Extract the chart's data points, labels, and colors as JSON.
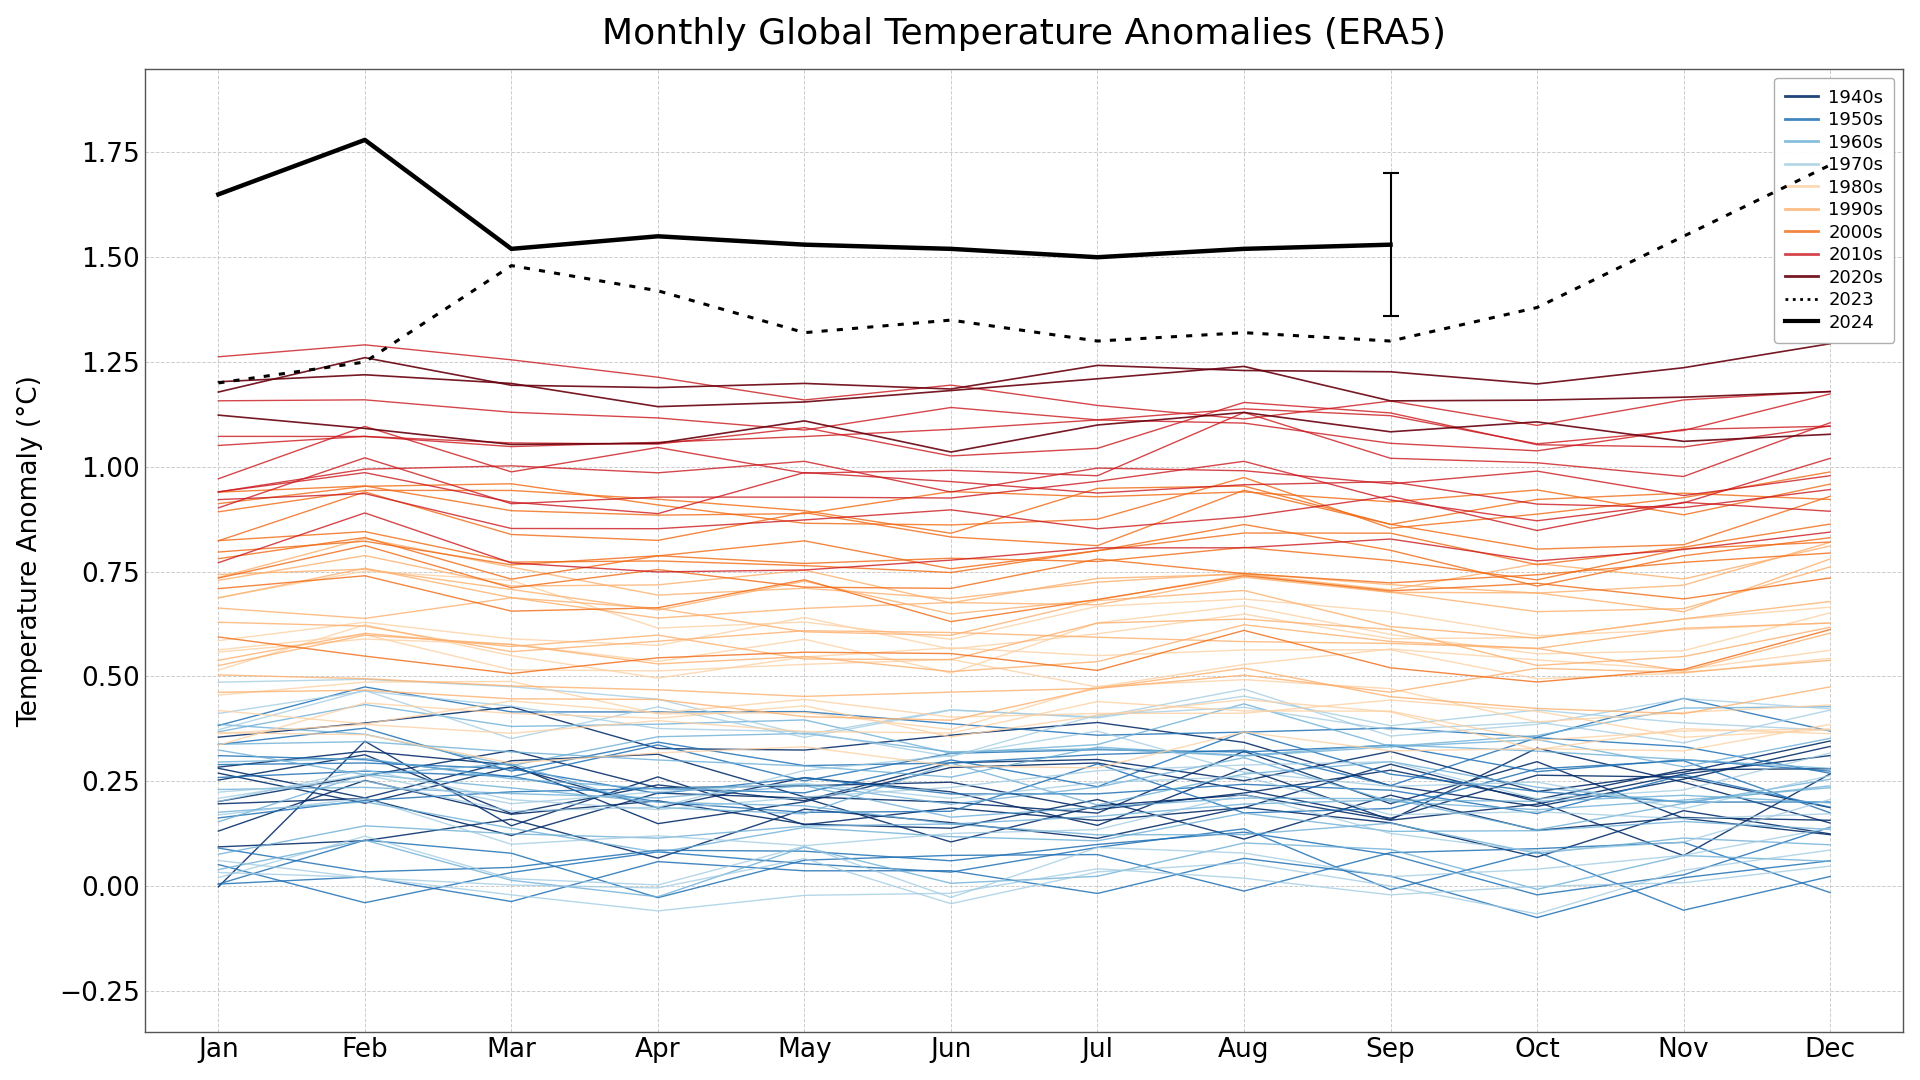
{
  "title": "Monthly Global Temperature Anomalies (ERA5)",
  "ylabel": "Temperature Anomaly (°C)",
  "months": [
    "Jan",
    "Feb",
    "Mar",
    "Apr",
    "May",
    "Jun",
    "Jul",
    "Aug",
    "Sep",
    "Oct",
    "Nov",
    "Dec"
  ],
  "decades": {
    "1940s": {
      "color": "#08306b",
      "alpha": 0.9,
      "lw": 1.0,
      "years": {
        "1940": [
          0.01,
          0.3,
          0.12,
          0.25,
          0.18,
          0.22,
          0.2,
          0.15,
          0.28,
          0.18,
          0.12,
          0.22
        ],
        "1941": [
          0.25,
          0.35,
          0.32,
          0.18,
          0.22,
          0.28,
          0.3,
          0.25,
          0.15,
          0.3,
          0.28,
          0.2
        ],
        "1942": [
          0.2,
          0.18,
          0.15,
          0.22,
          0.2,
          0.15,
          0.18,
          0.25,
          0.2,
          0.15,
          0.22,
          0.28
        ],
        "1943": [
          0.3,
          0.25,
          0.28,
          0.32,
          0.25,
          0.2,
          0.22,
          0.28,
          0.22,
          0.28,
          0.18,
          0.12
        ],
        "1944": [
          0.35,
          0.42,
          0.38,
          0.3,
          0.28,
          0.32,
          0.38,
          0.3,
          0.28,
          0.22,
          0.3,
          0.35
        ],
        "1945": [
          0.28,
          0.22,
          0.25,
          0.2,
          0.28,
          0.22,
          0.18,
          0.25,
          0.2,
          0.28,
          0.22,
          0.18
        ],
        "1946": [
          0.18,
          0.22,
          0.15,
          0.18,
          0.12,
          0.18,
          0.22,
          0.15,
          0.18,
          0.12,
          0.18,
          0.2
        ],
        "1947": [
          0.22,
          0.28,
          0.3,
          0.22,
          0.2,
          0.25,
          0.22,
          0.2,
          0.25,
          0.2,
          0.25,
          0.28
        ],
        "1948": [
          0.25,
          0.32,
          0.22,
          0.28,
          0.25,
          0.28,
          0.32,
          0.25,
          0.28,
          0.25,
          0.28,
          0.32
        ],
        "1949": [
          0.12,
          0.15,
          0.18,
          0.1,
          0.14,
          0.12,
          0.1,
          0.15,
          0.12,
          0.1,
          0.14,
          0.12
        ]
      }
    },
    "1950s": {
      "color": "#2171b5",
      "alpha": 0.85,
      "lw": 1.0,
      "years": {
        "1950": [
          0.02,
          -0.08,
          0.05,
          0.12,
          0.08,
          0.04,
          0.06,
          0.1,
          0.04,
          0.08,
          -0.05,
          0.05
        ],
        "1951": [
          0.2,
          0.22,
          0.18,
          0.25,
          0.22,
          0.28,
          0.25,
          0.32,
          0.22,
          0.25,
          0.2,
          0.22
        ],
        "1952": [
          0.28,
          0.32,
          0.25,
          0.2,
          0.22,
          0.2,
          0.25,
          0.2,
          0.22,
          0.28,
          0.25,
          0.2
        ],
        "1953": [
          0.32,
          0.35,
          0.3,
          0.32,
          0.3,
          0.28,
          0.3,
          0.32,
          0.28,
          0.32,
          0.35,
          0.3
        ],
        "1954": [
          0.05,
          0.1,
          0.06,
          0.02,
          0.06,
          0.1,
          0.06,
          0.02,
          0.06,
          0.1,
          0.06,
          0.02
        ],
        "1955": [
          0.02,
          0.06,
          -0.08,
          0.02,
          0.06,
          0.02,
          -0.05,
          0.06,
          0.02,
          -0.05,
          0.06,
          0.02
        ],
        "1956": [
          0.05,
          0.02,
          0.06,
          0.1,
          0.06,
          0.02,
          0.06,
          0.1,
          0.06,
          0.02,
          0.06,
          0.1
        ],
        "1957": [
          0.3,
          0.35,
          0.3,
          0.32,
          0.3,
          0.35,
          0.32,
          0.3,
          0.32,
          0.3,
          0.28,
          0.3
        ],
        "1958": [
          0.4,
          0.45,
          0.4,
          0.38,
          0.4,
          0.38,
          0.4,
          0.38,
          0.4,
          0.38,
          0.4,
          0.38
        ],
        "1959": [
          0.25,
          0.28,
          0.25,
          0.22,
          0.25,
          0.22,
          0.25,
          0.22,
          0.25,
          0.22,
          0.25,
          0.22
        ]
      }
    },
    "1960s": {
      "color": "#6baed6",
      "alpha": 0.8,
      "lw": 1.0,
      "years": {
        "1960": [
          0.28,
          0.22,
          0.25,
          0.2,
          0.22,
          0.25,
          0.2,
          0.22,
          0.25,
          0.2,
          0.22,
          0.25
        ],
        "1961": [
          0.35,
          0.38,
          0.32,
          0.35,
          0.32,
          0.3,
          0.32,
          0.35,
          0.32,
          0.3,
          0.32,
          0.35
        ],
        "1962": [
          0.3,
          0.32,
          0.3,
          0.28,
          0.3,
          0.28,
          0.3,
          0.28,
          0.3,
          0.28,
          0.3,
          0.28
        ],
        "1963": [
          0.2,
          0.22,
          0.2,
          0.18,
          0.2,
          0.18,
          0.2,
          0.25,
          0.2,
          0.18,
          0.2,
          0.25
        ],
        "1964": [
          0.06,
          0.1,
          0.06,
          0.02,
          0.06,
          0.02,
          0.06,
          0.1,
          0.06,
          0.02,
          0.06,
          0.1
        ],
        "1965": [
          0.12,
          0.14,
          0.12,
          0.1,
          0.12,
          0.1,
          0.12,
          0.14,
          0.12,
          0.1,
          0.12,
          0.14
        ],
        "1966": [
          0.2,
          0.22,
          0.2,
          0.18,
          0.2,
          0.18,
          0.2,
          0.22,
          0.2,
          0.18,
          0.2,
          0.22
        ],
        "1967": [
          0.25,
          0.28,
          0.25,
          0.22,
          0.25,
          0.22,
          0.25,
          0.28,
          0.25,
          0.22,
          0.25,
          0.28
        ],
        "1968": [
          0.14,
          0.18,
          0.14,
          0.12,
          0.14,
          0.12,
          0.14,
          0.18,
          0.14,
          0.12,
          0.14,
          0.18
        ],
        "1969": [
          0.38,
          0.42,
          0.38,
          0.35,
          0.38,
          0.35,
          0.38,
          0.42,
          0.38,
          0.35,
          0.38,
          0.42
        ]
      }
    },
    "1970s": {
      "color": "#9ecae1",
      "alpha": 0.75,
      "lw": 1.0,
      "years": {
        "1970": [
          0.22,
          0.25,
          0.2,
          0.22,
          0.2,
          0.22,
          0.2,
          0.22,
          0.2,
          0.22,
          0.2,
          0.22
        ],
        "1971": [
          0.06,
          0.1,
          0.06,
          0.02,
          0.06,
          0.02,
          0.06,
          0.1,
          0.06,
          0.02,
          0.06,
          0.1
        ],
        "1972": [
          0.2,
          0.22,
          0.2,
          0.22,
          0.25,
          0.28,
          0.32,
          0.28,
          0.25,
          0.22,
          0.2,
          0.22
        ],
        "1973": [
          0.45,
          0.5,
          0.45,
          0.42,
          0.4,
          0.38,
          0.4,
          0.42,
          0.4,
          0.38,
          0.4,
          0.42
        ],
        "1974": [
          0.02,
          0.06,
          0.02,
          -0.05,
          0.02,
          -0.05,
          0.02,
          0.06,
          0.02,
          -0.05,
          0.02,
          0.06
        ],
        "1975": [
          0.14,
          0.18,
          0.14,
          0.12,
          0.14,
          0.12,
          0.14,
          0.18,
          0.14,
          0.12,
          0.14,
          0.18
        ],
        "1976": [
          0.02,
          0.06,
          0.02,
          -0.08,
          0.02,
          -0.05,
          0.02,
          0.06,
          0.02,
          -0.05,
          0.02,
          0.06
        ],
        "1977": [
          0.38,
          0.42,
          0.38,
          0.35,
          0.38,
          0.35,
          0.38,
          0.42,
          0.38,
          0.35,
          0.38,
          0.42
        ],
        "1978": [
          0.25,
          0.28,
          0.25,
          0.22,
          0.25,
          0.22,
          0.25,
          0.28,
          0.25,
          0.22,
          0.25,
          0.28
        ],
        "1979": [
          0.4,
          0.42,
          0.4,
          0.38,
          0.4,
          0.38,
          0.4,
          0.42,
          0.4,
          0.38,
          0.4,
          0.42
        ]
      }
    },
    "1980s": {
      "color": "#fdd0a2",
      "alpha": 0.8,
      "lw": 1.0,
      "years": {
        "1980": [
          0.55,
          0.58,
          0.52,
          0.5,
          0.52,
          0.5,
          0.52,
          0.55,
          0.52,
          0.5,
          0.52,
          0.55
        ],
        "1981": [
          0.58,
          0.62,
          0.58,
          0.55,
          0.58,
          0.55,
          0.58,
          0.62,
          0.58,
          0.55,
          0.58,
          0.62
        ],
        "1982": [
          0.4,
          0.42,
          0.4,
          0.38,
          0.4,
          0.38,
          0.4,
          0.42,
          0.4,
          0.38,
          0.4,
          0.42
        ],
        "1983": [
          0.7,
          0.72,
          0.68,
          0.65,
          0.62,
          0.6,
          0.62,
          0.65,
          0.62,
          0.6,
          0.62,
          0.65
        ],
        "1984": [
          0.38,
          0.4,
          0.38,
          0.35,
          0.38,
          0.35,
          0.38,
          0.4,
          0.38,
          0.35,
          0.38,
          0.4
        ],
        "1985": [
          0.32,
          0.35,
          0.32,
          0.3,
          0.32,
          0.3,
          0.32,
          0.35,
          0.32,
          0.3,
          0.32,
          0.35
        ],
        "1986": [
          0.45,
          0.48,
          0.45,
          0.42,
          0.45,
          0.42,
          0.45,
          0.48,
          0.45,
          0.42,
          0.45,
          0.48
        ],
        "1987": [
          0.6,
          0.62,
          0.6,
          0.58,
          0.6,
          0.58,
          0.6,
          0.62,
          0.6,
          0.58,
          0.6,
          0.62
        ],
        "1988": [
          0.55,
          0.58,
          0.55,
          0.52,
          0.55,
          0.52,
          0.55,
          0.58,
          0.55,
          0.52,
          0.55,
          0.58
        ],
        "1989": [
          0.4,
          0.42,
          0.4,
          0.38,
          0.4,
          0.38,
          0.4,
          0.42,
          0.4,
          0.38,
          0.4,
          0.42
        ]
      }
    },
    "1990s": {
      "color": "#fdae6b",
      "alpha": 0.8,
      "lw": 1.0,
      "years": {
        "1990": [
          0.72,
          0.78,
          0.72,
          0.68,
          0.7,
          0.68,
          0.7,
          0.75,
          0.7,
          0.68,
          0.7,
          0.75
        ],
        "1991": [
          0.65,
          0.68,
          0.65,
          0.62,
          0.65,
          0.62,
          0.65,
          0.68,
          0.65,
          0.62,
          0.65,
          0.68
        ],
        "1992": [
          0.45,
          0.48,
          0.45,
          0.42,
          0.45,
          0.42,
          0.45,
          0.48,
          0.45,
          0.42,
          0.45,
          0.48
        ],
        "1993": [
          0.5,
          0.52,
          0.5,
          0.48,
          0.5,
          0.48,
          0.5,
          0.52,
          0.5,
          0.48,
          0.5,
          0.52
        ],
        "1994": [
          0.6,
          0.62,
          0.6,
          0.58,
          0.6,
          0.58,
          0.6,
          0.62,
          0.6,
          0.58,
          0.6,
          0.62
        ],
        "1995": [
          0.75,
          0.78,
          0.75,
          0.72,
          0.75,
          0.72,
          0.75,
          0.78,
          0.75,
          0.72,
          0.75,
          0.78
        ],
        "1996": [
          0.58,
          0.6,
          0.58,
          0.55,
          0.58,
          0.55,
          0.58,
          0.6,
          0.58,
          0.55,
          0.58,
          0.6
        ],
        "1997": [
          0.7,
          0.75,
          0.7,
          0.68,
          0.7,
          0.68,
          0.7,
          0.75,
          0.7,
          0.68,
          0.7,
          0.75
        ],
        "1998": [
          0.75,
          0.78,
          0.75,
          0.72,
          0.75,
          0.72,
          0.75,
          0.78,
          0.75,
          0.72,
          0.75,
          0.78
        ],
        "1999": [
          0.55,
          0.58,
          0.55,
          0.52,
          0.55,
          0.52,
          0.55,
          0.58,
          0.55,
          0.52,
          0.55,
          0.58
        ]
      }
    },
    "2000s": {
      "color": "#f16913",
      "alpha": 0.8,
      "lw": 1.0,
      "years": {
        "2000": [
          0.55,
          0.58,
          0.55,
          0.52,
          0.55,
          0.52,
          0.55,
          0.58,
          0.55,
          0.52,
          0.55,
          0.58
        ],
        "2001": [
          0.78,
          0.82,
          0.78,
          0.75,
          0.78,
          0.75,
          0.78,
          0.82,
          0.78,
          0.75,
          0.78,
          0.82
        ],
        "2002": [
          0.85,
          0.9,
          0.85,
          0.82,
          0.85,
          0.82,
          0.85,
          0.9,
          0.85,
          0.82,
          0.85,
          0.9
        ],
        "2003": [
          0.9,
          0.95,
          0.92,
          0.88,
          0.9,
          0.88,
          0.9,
          0.95,
          0.9,
          0.88,
          0.9,
          0.95
        ],
        "2004": [
          0.75,
          0.78,
          0.75,
          0.72,
          0.75,
          0.72,
          0.75,
          0.78,
          0.75,
          0.72,
          0.75,
          0.78
        ],
        "2005": [
          0.92,
          0.95,
          0.92,
          0.9,
          0.92,
          0.9,
          0.92,
          0.95,
          0.92,
          0.9,
          0.92,
          0.95
        ],
        "2006": [
          0.78,
          0.82,
          0.78,
          0.75,
          0.78,
          0.75,
          0.78,
          0.82,
          0.78,
          0.75,
          0.78,
          0.82
        ],
        "2007": [
          0.9,
          0.92,
          0.9,
          0.88,
          0.9,
          0.88,
          0.9,
          0.92,
          0.9,
          0.88,
          0.9,
          0.92
        ],
        "2008": [
          0.7,
          0.75,
          0.7,
          0.68,
          0.7,
          0.68,
          0.7,
          0.75,
          0.7,
          0.68,
          0.7,
          0.75
        ],
        "2009": [
          0.8,
          0.85,
          0.8,
          0.78,
          0.8,
          0.78,
          0.8,
          0.85,
          0.8,
          0.78,
          0.8,
          0.85
        ]
      }
    },
    "2010s": {
      "color": "#cb181d",
      "alpha": 0.8,
      "lw": 1.0,
      "years": {
        "2010": [
          1.02,
          1.08,
          1.02,
          1.0,
          1.02,
          1.0,
          1.02,
          1.08,
          1.02,
          1.0,
          1.02,
          1.08
        ],
        "2011": [
          0.8,
          0.85,
          0.8,
          0.78,
          0.8,
          0.78,
          0.8,
          0.85,
          0.8,
          0.78,
          0.8,
          0.85
        ],
        "2012": [
          0.95,
          0.98,
          0.95,
          0.92,
          0.95,
          0.92,
          0.95,
          0.98,
          0.95,
          0.92,
          0.95,
          0.98
        ],
        "2013": [
          0.9,
          0.92,
          0.9,
          0.88,
          0.9,
          0.88,
          0.9,
          0.92,
          0.9,
          0.88,
          0.9,
          0.92
        ],
        "2014": [
          0.98,
          1.02,
          0.98,
          0.95,
          0.98,
          0.95,
          0.98,
          1.02,
          0.98,
          0.95,
          0.98,
          1.02
        ],
        "2015": [
          1.08,
          1.12,
          1.08,
          1.05,
          1.08,
          1.05,
          1.08,
          1.12,
          1.08,
          1.05,
          1.08,
          1.12
        ],
        "2016": [
          1.25,
          1.3,
          1.25,
          1.22,
          1.18,
          1.15,
          1.12,
          1.15,
          1.12,
          1.1,
          1.12,
          1.15
        ],
        "2017": [
          1.08,
          1.12,
          1.08,
          1.05,
          1.08,
          1.05,
          1.08,
          1.12,
          1.08,
          1.05,
          1.08,
          1.12
        ],
        "2018": [
          0.95,
          0.98,
          0.95,
          0.92,
          0.95,
          0.92,
          0.95,
          0.98,
          0.95,
          0.92,
          0.95,
          0.98
        ],
        "2019": [
          1.12,
          1.15,
          1.12,
          1.1,
          1.12,
          1.1,
          1.12,
          1.15,
          1.12,
          1.1,
          1.12,
          1.15
        ]
      }
    },
    "2020s": {
      "color": "#67000d",
      "alpha": 0.9,
      "lw": 1.2,
      "years": {
        "2020": [
          1.22,
          1.25,
          1.22,
          1.2,
          1.22,
          1.2,
          1.22,
          1.25,
          1.22,
          1.2,
          1.22,
          1.25
        ],
        "2021": [
          1.1,
          1.12,
          1.1,
          1.08,
          1.1,
          1.08,
          1.1,
          1.12,
          1.1,
          1.08,
          1.1,
          1.12
        ],
        "2022": [
          1.18,
          1.22,
          1.18,
          1.15,
          1.18,
          1.15,
          1.18,
          1.22,
          1.18,
          1.15,
          1.18,
          1.22
        ]
      }
    }
  },
  "line_2023": [
    1.2,
    1.25,
    1.48,
    1.42,
    1.32,
    1.35,
    1.3,
    1.32,
    1.3,
    1.38,
    1.55,
    1.72
  ],
  "line_2024": [
    1.65,
    1.78,
    1.52,
    1.55,
    1.53,
    1.52,
    1.5,
    1.52,
    1.53,
    null,
    null,
    null
  ],
  "line_2024_err_lo": 0.17,
  "line_2024_err_hi": 0.17,
  "ylim": [
    -0.35,
    1.95
  ],
  "yticks": [
    -0.25,
    0.0,
    0.25,
    0.5,
    0.75,
    1.0,
    1.25,
    1.5,
    1.75
  ],
  "background_color": "#ffffff",
  "grid_color": "#c8c8c8"
}
